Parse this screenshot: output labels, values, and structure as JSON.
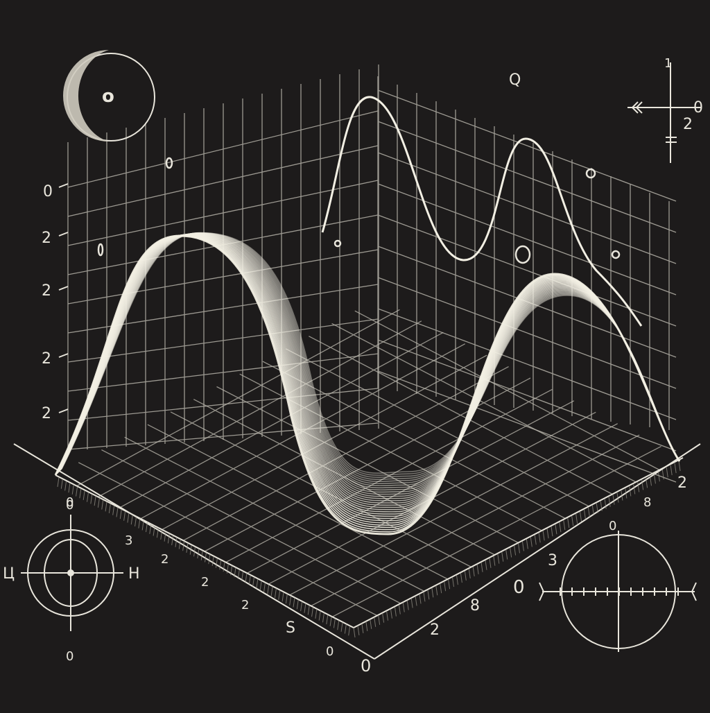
{
  "colors": {
    "background": "#1d1b1b",
    "chalk": "#e9e6dc",
    "grid": "#bdbab0",
    "surface": "#f2efe3"
  },
  "left_axis_labels": [
    "0",
    "2",
    "2",
    "2",
    "2"
  ],
  "front_left_labels": [
    "0",
    "3",
    "2",
    "2",
    "2",
    "S",
    "0"
  ],
  "front_right_labels": [
    "2",
    "8",
    "3",
    "0",
    "8",
    "2",
    "0"
  ],
  "floating_labels": {
    "top_center": "Q",
    "top_right_2": "2",
    "top_right_1": "1",
    "top_right_0": "0",
    "moon_center": "o"
  },
  "compass_left": {
    "left": "Ц",
    "right": "H",
    "top": "0",
    "bottom": "0"
  },
  "compass_right": {
    "top": "0",
    "left": "0"
  }
}
